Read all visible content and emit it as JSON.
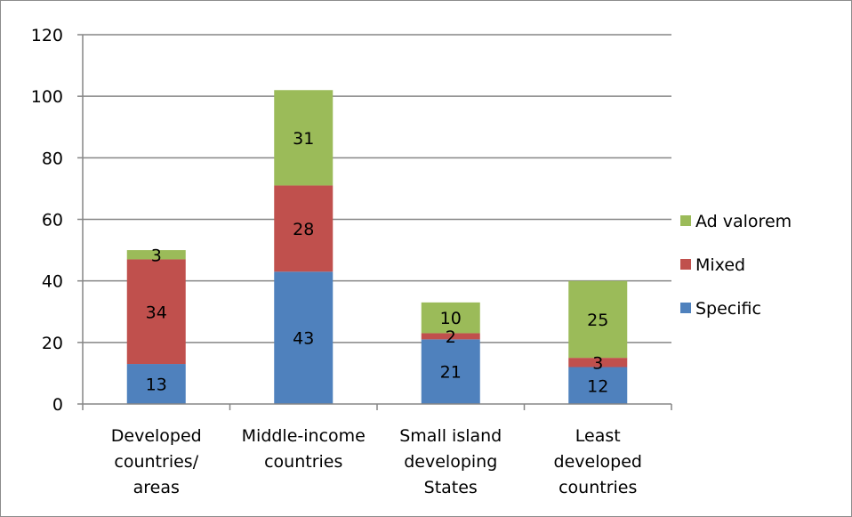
{
  "chart_data": {
    "type": "bar",
    "stacked": true,
    "title": "",
    "xlabel": "",
    "ylabel": "",
    "ylim": [
      0,
      120
    ],
    "yticks": [
      0,
      20,
      40,
      60,
      80,
      100,
      120
    ],
    "grid": true,
    "legend_position": "right",
    "categories": [
      [
        "Developed",
        "countries/",
        "areas"
      ],
      [
        "Middle-income",
        "countries"
      ],
      [
        "Small island",
        "developing",
        "States"
      ],
      [
        "Least",
        "developed",
        "countries"
      ]
    ],
    "series": [
      {
        "name": "Specific",
        "color": "#4f81bd",
        "values": [
          13,
          43,
          21,
          12
        ]
      },
      {
        "name": "Mixed",
        "color": "#c0504d",
        "values": [
          34,
          28,
          2,
          3
        ]
      },
      {
        "name": "Ad valorem",
        "color": "#9bbb59",
        "values": [
          3,
          31,
          10,
          25
        ]
      }
    ],
    "legend_order": [
      "Ad valorem",
      "Mixed",
      "Specific"
    ]
  }
}
